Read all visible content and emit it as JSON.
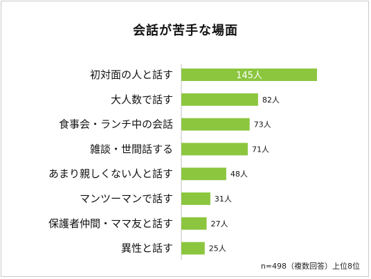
{
  "chart_data": {
    "type": "bar",
    "orientation": "horizontal",
    "title": "会話が苦手な場面",
    "categories": [
      "初対面の人と話す",
      "大人数で話す",
      "食事会・ランチ中の会話",
      "雑談・世間話する",
      "あまり親しくない人と話す",
      "マンツーマンで話す",
      "保護者仲間・ママ友と話す",
      "異性と話す"
    ],
    "values": [
      145,
      82,
      73,
      71,
      48,
      31,
      27,
      25
    ],
    "value_labels": [
      "145人",
      "82人",
      "73人",
      "71人",
      "48人",
      "31人",
      "27人",
      "25人"
    ],
    "xlim": [
      0,
      145
    ],
    "bar_color": "#8cc63f",
    "grid": false,
    "note": "n=498（複数回答）上位8位"
  }
}
